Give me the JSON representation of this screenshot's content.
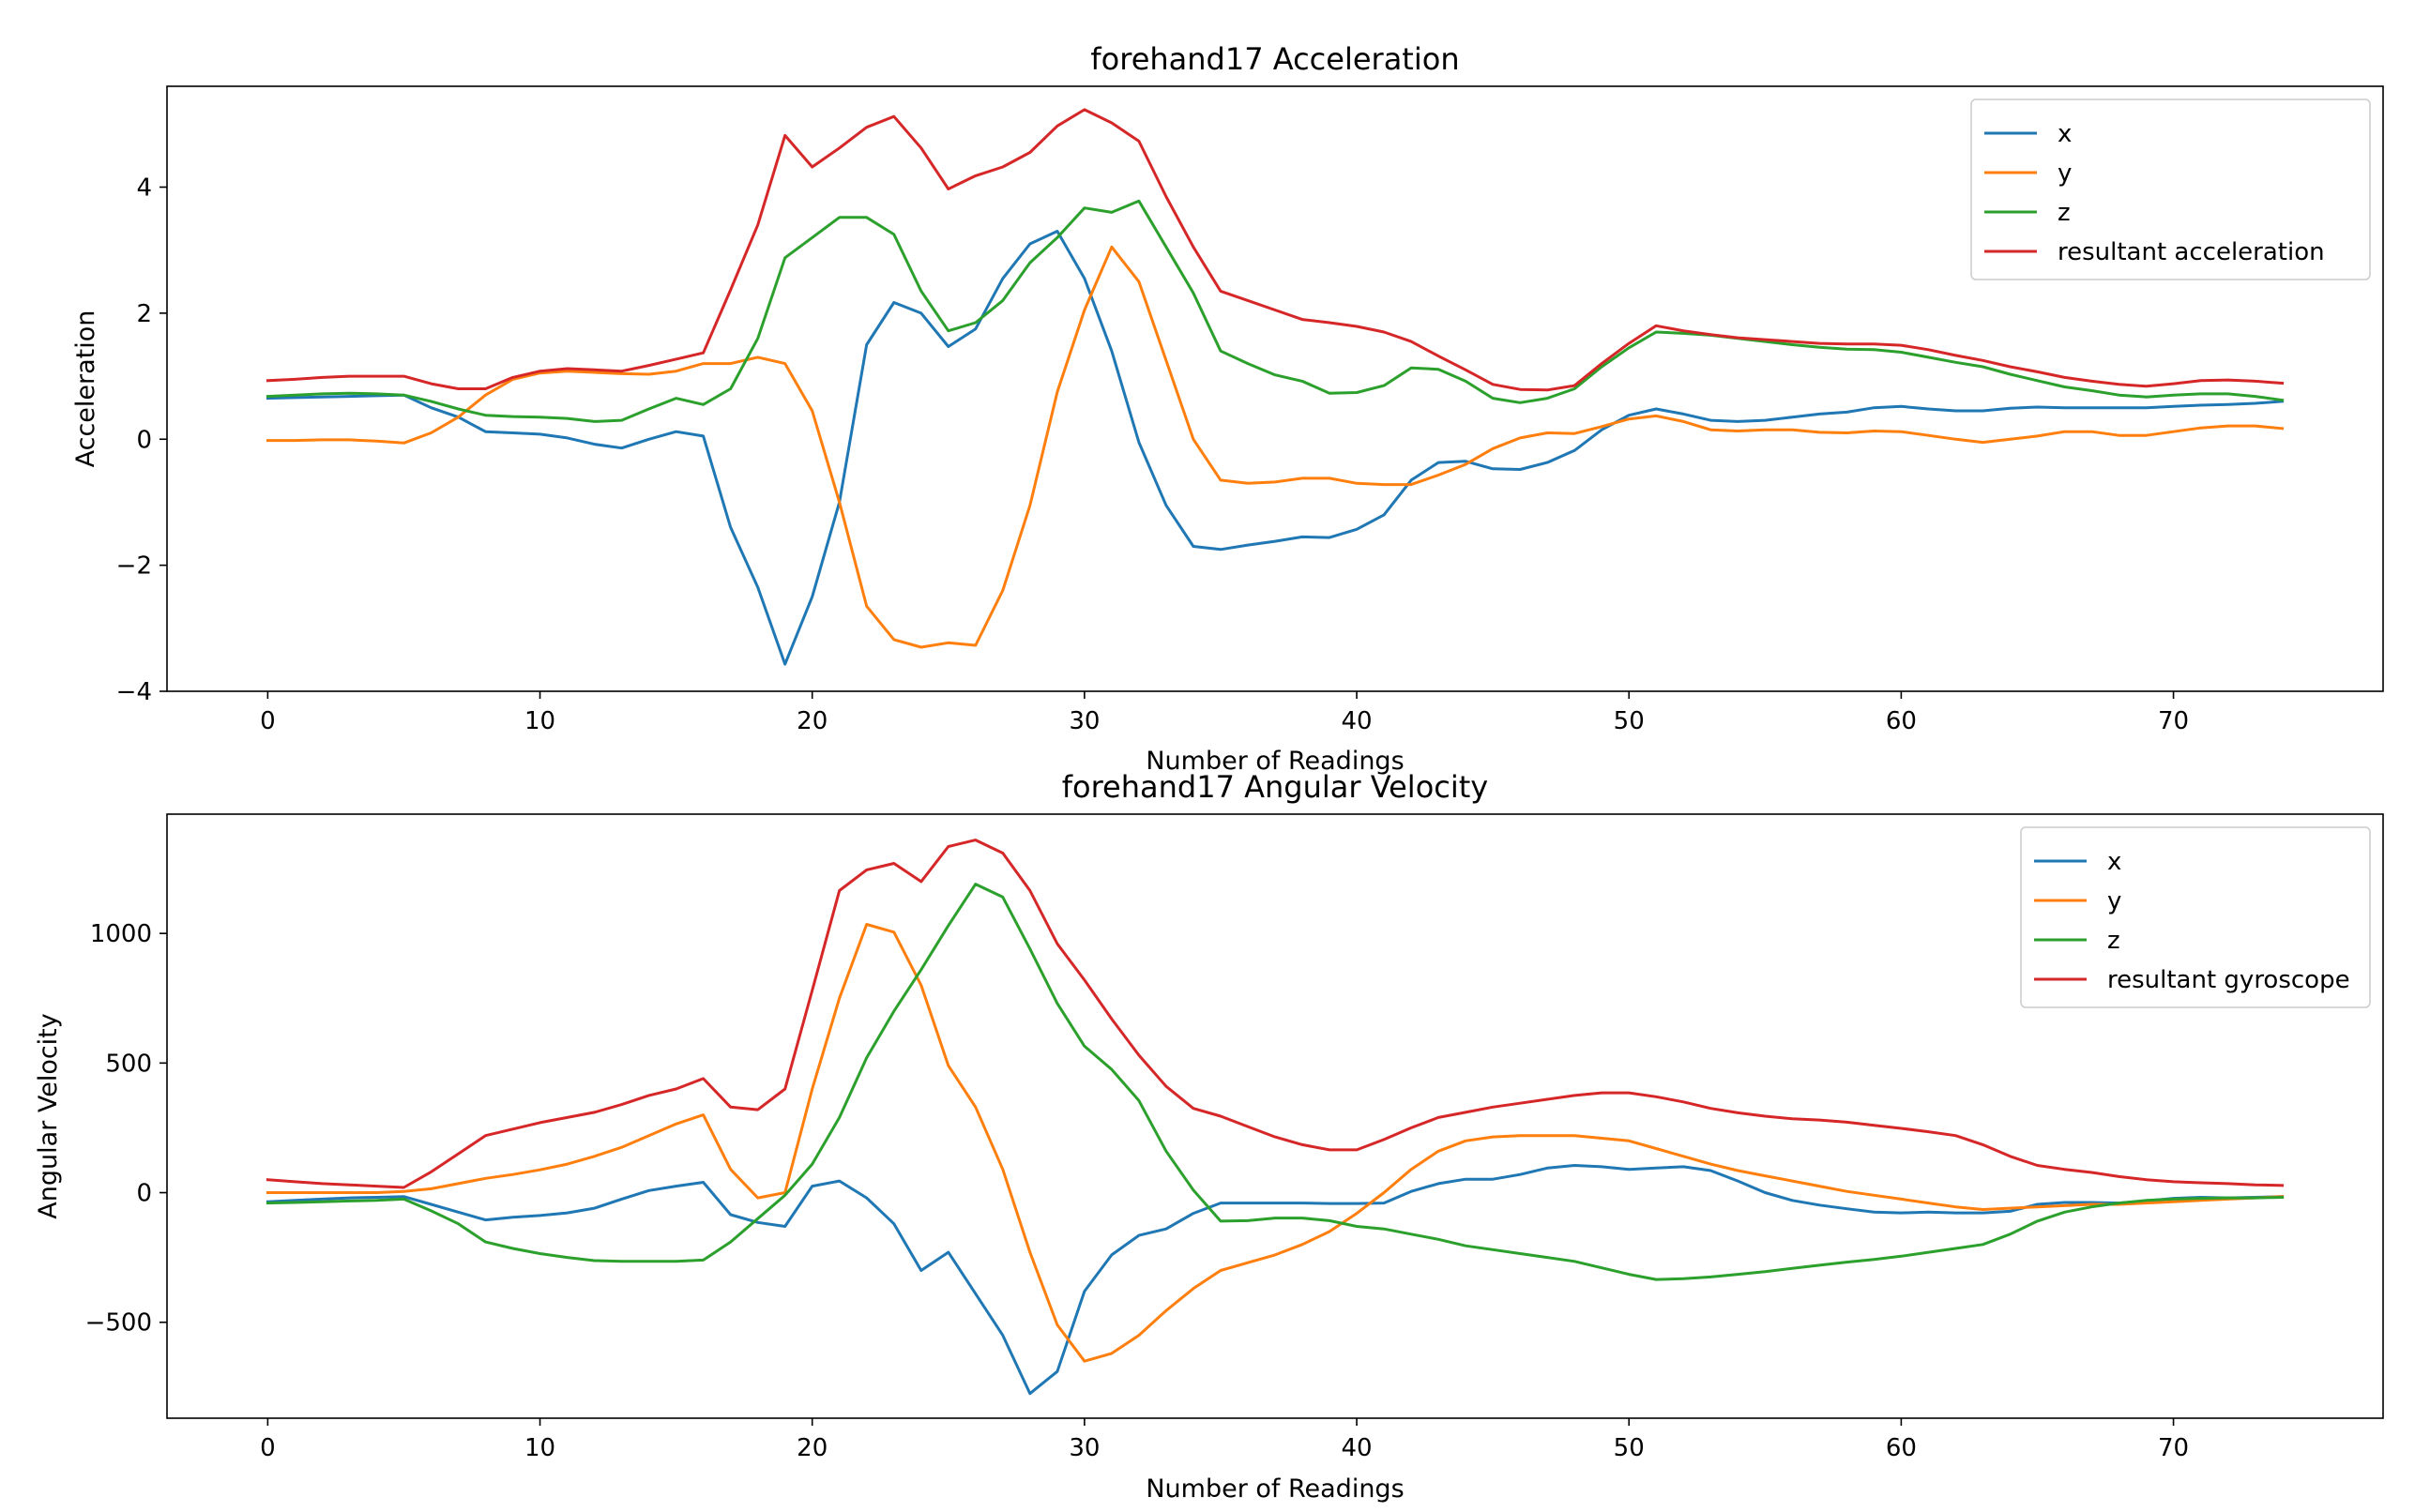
{
  "chart_data": [
    {
      "type": "line",
      "title": "forehand17 Acceleration",
      "xlabel": "Number of Readings",
      "ylabel": "Acceleration",
      "xlim": [
        -3.7,
        77.7
      ],
      "ylim": [
        -4,
        5.6
      ],
      "xticks": [
        0,
        10,
        20,
        30,
        40,
        50,
        60,
        70
      ],
      "yticks": [
        -4,
        -2,
        0,
        2,
        4
      ],
      "grid": false,
      "legend_position": "top-right",
      "x_start": 0,
      "series": [
        {
          "name": "x",
          "color": "#1f77b4",
          "values": [
            0.65,
            0.66,
            0.67,
            0.68,
            0.69,
            0.7,
            0.5,
            0.35,
            0.12,
            0.1,
            0.08,
            0.02,
            -0.08,
            -0.14,
            0.0,
            0.12,
            0.05,
            -1.4,
            -2.35,
            -3.57,
            -2.5,
            -1.0,
            1.5,
            2.17,
            2.0,
            1.47,
            1.75,
            2.55,
            3.1,
            3.3,
            2.55,
            1.4,
            -0.05,
            -1.05,
            -1.7,
            -1.75,
            -1.68,
            -1.62,
            -1.55,
            -1.56,
            -1.43,
            -1.2,
            -0.65,
            -0.37,
            -0.35,
            -0.47,
            -0.48,
            -0.37,
            -0.18,
            0.15,
            0.38,
            0.48,
            0.4,
            0.3,
            0.28,
            0.3,
            0.35,
            0.4,
            0.43,
            0.5,
            0.52,
            0.48,
            0.45,
            0.45,
            0.49,
            0.51,
            0.5,
            0.5,
            0.5,
            0.5,
            0.52,
            0.54,
            0.55,
            0.57,
            0.6
          ]
        },
        {
          "name": "y",
          "color": "#ff7f0e",
          "values": [
            -0.02,
            -0.02,
            -0.01,
            -0.01,
            -0.03,
            -0.06,
            0.1,
            0.35,
            0.7,
            0.95,
            1.05,
            1.08,
            1.06,
            1.04,
            1.03,
            1.08,
            1.2,
            1.2,
            1.3,
            1.2,
            0.45,
            -1.0,
            -2.65,
            -3.18,
            -3.3,
            -3.23,
            -3.27,
            -2.4,
            -1.05,
            0.75,
            2.05,
            3.05,
            2.5,
            1.25,
            0.0,
            -0.65,
            -0.7,
            -0.68,
            -0.62,
            -0.62,
            -0.7,
            -0.72,
            -0.72,
            -0.57,
            -0.4,
            -0.15,
            0.02,
            0.1,
            0.09,
            0.2,
            0.32,
            0.37,
            0.28,
            0.15,
            0.13,
            0.15,
            0.15,
            0.11,
            0.1,
            0.13,
            0.12,
            0.06,
            0.0,
            -0.05,
            0.0,
            0.05,
            0.12,
            0.12,
            0.06,
            0.06,
            0.12,
            0.18,
            0.21,
            0.21,
            0.17
          ]
        },
        {
          "name": "z",
          "color": "#2ca02c",
          "values": [
            0.68,
            0.7,
            0.72,
            0.73,
            0.72,
            0.7,
            0.6,
            0.48,
            0.38,
            0.36,
            0.35,
            0.33,
            0.28,
            0.3,
            0.48,
            0.65,
            0.55,
            0.8,
            1.6,
            2.88,
            3.2,
            3.52,
            3.52,
            3.25,
            2.35,
            1.72,
            1.85,
            2.2,
            2.8,
            3.2,
            3.67,
            3.6,
            3.78,
            3.05,
            2.32,
            1.4,
            1.2,
            1.02,
            0.92,
            0.73,
            0.74,
            0.85,
            1.13,
            1.11,
            0.92,
            0.65,
            0.58,
            0.65,
            0.8,
            1.15,
            1.45,
            1.7,
            1.68,
            1.65,
            1.6,
            1.55,
            1.5,
            1.46,
            1.43,
            1.42,
            1.38,
            1.3,
            1.22,
            1.15,
            1.03,
            0.93,
            0.83,
            0.77,
            0.7,
            0.67,
            0.7,
            0.72,
            0.72,
            0.68,
            0.62
          ]
        },
        {
          "name": "resultant acceleration",
          "color": "#d62728",
          "values": [
            0.93,
            0.95,
            0.98,
            1.0,
            1.0,
            1.0,
            0.88,
            0.8,
            0.8,
            0.98,
            1.08,
            1.12,
            1.1,
            1.08,
            1.17,
            1.27,
            1.37,
            2.37,
            3.4,
            4.82,
            4.32,
            4.62,
            4.95,
            5.12,
            4.62,
            3.97,
            4.18,
            4.32,
            4.55,
            4.97,
            5.23,
            5.02,
            4.73,
            3.85,
            3.05,
            2.35,
            2.2,
            2.05,
            1.9,
            1.85,
            1.79,
            1.7,
            1.55,
            1.32,
            1.1,
            0.87,
            0.79,
            0.78,
            0.85,
            1.2,
            1.52,
            1.8,
            1.72,
            1.66,
            1.61,
            1.58,
            1.55,
            1.52,
            1.51,
            1.51,
            1.49,
            1.42,
            1.33,
            1.25,
            1.15,
            1.07,
            0.98,
            0.92,
            0.87,
            0.84,
            0.88,
            0.93,
            0.94,
            0.92,
            0.89
          ]
        }
      ]
    },
    {
      "type": "line",
      "title": "forehand17 Angular Velocity",
      "xlabel": "Number of Readings",
      "ylabel": "Angular Velocity",
      "xlim": [
        -3.7,
        77.7
      ],
      "ylim": [
        -870,
        1460
      ],
      "xticks": [
        0,
        10,
        20,
        30,
        40,
        50,
        60,
        70
      ],
      "yticks": [
        -500,
        0,
        500,
        1000
      ],
      "grid": false,
      "legend_position": "top-right",
      "x_start": 0,
      "series": [
        {
          "name": "x",
          "color": "#1f77b4",
          "values": [
            -35,
            -30,
            -25,
            -20,
            -18,
            -15,
            -45,
            -75,
            -105,
            -95,
            -88,
            -78,
            -60,
            -25,
            8,
            25,
            40,
            -85,
            -115,
            -130,
            25,
            45,
            -20,
            -120,
            -300,
            -230,
            -390,
            -550,
            -775,
            -690,
            -380,
            -240,
            -165,
            -140,
            -80,
            -40,
            -40,
            -40,
            -40,
            -42,
            -42,
            -40,
            5,
            35,
            52,
            52,
            70,
            95,
            105,
            100,
            90,
            95,
            100,
            85,
            45,
            0,
            -30,
            -48,
            -62,
            -75,
            -78,
            -75,
            -78,
            -78,
            -72,
            -45,
            -38,
            -38,
            -40,
            -32,
            -22,
            -18,
            -20,
            -18,
            -15
          ]
        },
        {
          "name": "y",
          "color": "#ff7f0e",
          "values": [
            0,
            0,
            0,
            0,
            0,
            5,
            15,
            35,
            55,
            70,
            88,
            110,
            140,
            175,
            220,
            265,
            300,
            90,
            -20,
            0,
            400,
            750,
            1035,
            1005,
            800,
            490,
            330,
            90,
            -230,
            -510,
            -650,
            -620,
            -550,
            -455,
            -370,
            -300,
            -270,
            -240,
            -200,
            -150,
            -80,
            0,
            90,
            160,
            200,
            215,
            220,
            220,
            220,
            210,
            200,
            170,
            140,
            110,
            85,
            65,
            45,
            25,
            5,
            -10,
            -25,
            -40,
            -55,
            -65,
            -60,
            -55,
            -50,
            -45,
            -45,
            -40,
            -35,
            -30,
            -25,
            -20,
            -15
          ]
        },
        {
          "name": "z",
          "color": "#2ca02c",
          "values": [
            -40,
            -38,
            -35,
            -32,
            -30,
            -25,
            -70,
            -120,
            -190,
            -215,
            -235,
            -250,
            -262,
            -265,
            -265,
            -265,
            -260,
            -190,
            -100,
            -10,
            110,
            290,
            520,
            700,
            860,
            1030,
            1190,
            1140,
            940,
            730,
            565,
            475,
            355,
            160,
            10,
            -110,
            -108,
            -98,
            -98,
            -108,
            -130,
            -140,
            -160,
            -180,
            -205,
            -220,
            -235,
            -250,
            -265,
            -290,
            -315,
            -335,
            -332,
            -325,
            -315,
            -305,
            -292,
            -280,
            -268,
            -258,
            -245,
            -230,
            -215,
            -200,
            -160,
            -110,
            -75,
            -55,
            -40,
            -30,
            -25,
            -22,
            -20,
            -20,
            -18
          ]
        },
        {
          "name": "resultant gyroscope",
          "color": "#d62728",
          "values": [
            50,
            42,
            35,
            30,
            25,
            20,
            80,
            150,
            220,
            245,
            270,
            290,
            310,
            340,
            375,
            400,
            440,
            330,
            320,
            400,
            780,
            1165,
            1245,
            1270,
            1200,
            1335,
            1360,
            1310,
            1165,
            960,
            820,
            670,
            530,
            410,
            325,
            295,
            255,
            215,
            185,
            165,
            165,
            205,
            250,
            290,
            310,
            330,
            345,
            360,
            375,
            385,
            385,
            370,
            350,
            325,
            308,
            295,
            285,
            280,
            272,
            260,
            248,
            235,
            220,
            185,
            140,
            105,
            90,
            78,
            62,
            50,
            42,
            38,
            35,
            30,
            28
          ]
        }
      ]
    }
  ]
}
